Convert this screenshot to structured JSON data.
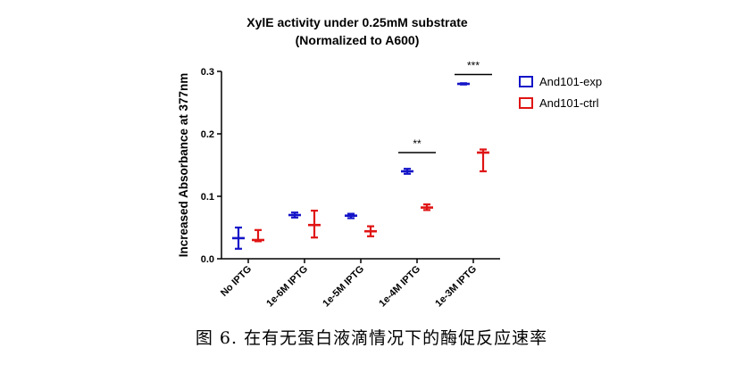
{
  "chart_data": {
    "type": "scatter",
    "title": [
      "XylE activity under 0.25mM substrate",
      "(Normalized to A600)"
    ],
    "xlabel": "",
    "ylabel": "Increased Absorbance at 377nm",
    "categories": [
      "No IPTG",
      "1e-6M IPTG",
      "1e-5M IPTG",
      "1e-4M IPTG",
      "1e-3M IPTG"
    ],
    "ylim": [
      0,
      0.3
    ],
    "yticks": [
      "0.0",
      "0.1",
      "0.2",
      "0.3"
    ],
    "series": [
      {
        "name": "And101-exp",
        "color": "#1414c8",
        "mean": [
          0.033,
          0.07,
          0.069,
          0.14,
          0.28
        ],
        "low": [
          0.016,
          0.066,
          0.065,
          0.136,
          0.279
        ],
        "high": [
          0.05,
          0.074,
          0.072,
          0.144,
          0.281
        ]
      },
      {
        "name": "And101-ctrl",
        "color": "#e01414",
        "mean": [
          0.03,
          0.054,
          0.044,
          0.082,
          0.17
        ],
        "low": [
          0.028,
          0.034,
          0.036,
          0.078,
          0.14
        ],
        "high": [
          0.046,
          0.077,
          0.052,
          0.087,
          0.175
        ]
      }
    ],
    "significance": [
      {
        "category_index": 3,
        "label": "**",
        "y": 0.17
      },
      {
        "category_index": 4,
        "label": "***",
        "y": 0.295
      }
    ],
    "legend_position": "right",
    "grid": false
  },
  "caption": "图 6.  在有无蛋白液滴情况下的酶促反应速率"
}
